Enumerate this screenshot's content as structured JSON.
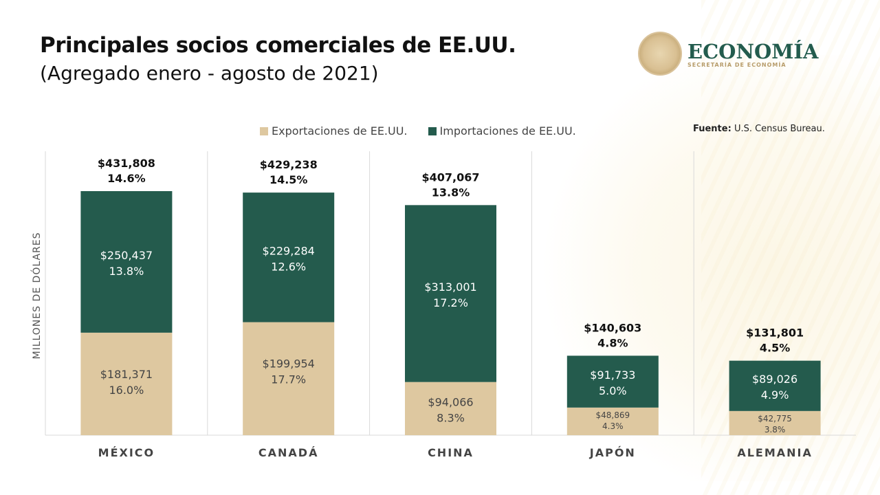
{
  "header": {
    "title": "Principales socios comerciales de EE.UU.",
    "subtitle": "(Agregado enero - agosto de 2021)"
  },
  "logo": {
    "name": "ECONOMÍA",
    "tagline": "SECRETARÍA DE ECONOMÍA"
  },
  "source": {
    "label": "Fuente:",
    "value": "U.S. Census Bureau."
  },
  "colors": {
    "exports": "#dec8a0",
    "imports": "#245b4d",
    "total_label": "#111111",
    "export_label": "#444444",
    "import_label": "#ffffff",
    "grid": "#d9d9d9"
  },
  "chart_data": {
    "type": "bar",
    "stacked": true,
    "title": "Principales socios comerciales de EE.UU.",
    "subtitle": "(Agregado enero - agosto de 2021)",
    "xlabel": "",
    "ylabel": "MILLONES DE DÓLARES",
    "ylim": [
      0,
      520000
    ],
    "grid": false,
    "legend_position": "top",
    "categories": [
      "MÉXICO",
      "CANADÁ",
      "CHINA",
      "JAPÓN",
      "ALEMANIA"
    ],
    "series": [
      {
        "name": "Exportaciones de EE.UU.",
        "values": [
          181371,
          199954,
          94066,
          48869,
          42775
        ],
        "labels": [
          "$181,371",
          "$199,954",
          "$94,066",
          "$48,869",
          "$42,775"
        ],
        "shares": [
          "16.0%",
          "17.7%",
          "8.3%",
          "4.3%",
          "3.8%"
        ]
      },
      {
        "name": "Importaciones de EE.UU.",
        "values": [
          250437,
          229284,
          313001,
          91733,
          89026
        ],
        "labels": [
          "$250,437",
          "$229,284",
          "$313,001",
          "$91,733",
          "$89,026"
        ],
        "shares": [
          "13.8%",
          "12.6%",
          "17.2%",
          "5.0%",
          "4.9%"
        ]
      }
    ],
    "totals": {
      "values": [
        431808,
        429238,
        407067,
        140603,
        131801
      ],
      "labels": [
        "$431,808",
        "$429,238",
        "$407,067",
        "$140,603",
        "$131,801"
      ],
      "shares": [
        "14.6%",
        "14.5%",
        "13.8%",
        "4.8%",
        "4.5%"
      ]
    }
  }
}
